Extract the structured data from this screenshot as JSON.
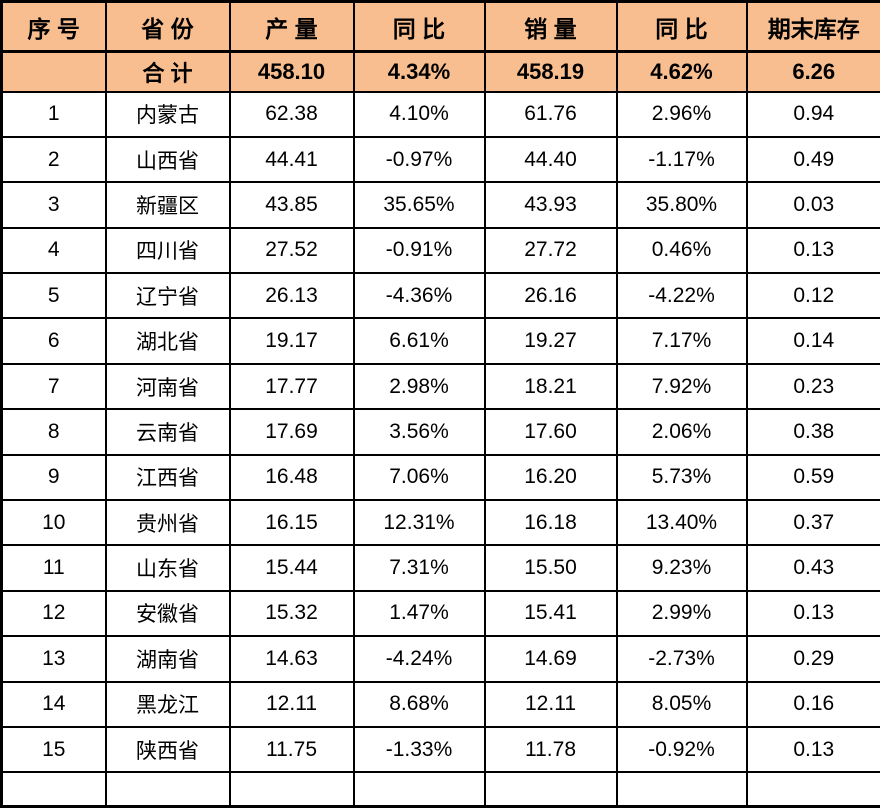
{
  "colors": {
    "header_bg": "#F9BE8F",
    "border": "#000000",
    "text": "#000000",
    "row_bg": "#FFFFFF"
  },
  "table": {
    "columns": [
      {
        "key": "index",
        "label": "序 号"
      },
      {
        "key": "province",
        "label": "省 份"
      },
      {
        "key": "production",
        "label": "产 量"
      },
      {
        "key": "production_yoy",
        "label": "同 比"
      },
      {
        "key": "sales",
        "label": "销 量"
      },
      {
        "key": "sales_yoy",
        "label": "同 比"
      },
      {
        "key": "ending_inventory",
        "label": "期末库存"
      }
    ],
    "total_row": {
      "index": "",
      "province": "合 计",
      "production": "458.10",
      "production_yoy": "4.34%",
      "sales": "458.19",
      "sales_yoy": "4.62%",
      "ending_inventory": "6.26"
    },
    "rows": [
      {
        "index": "1",
        "province": "内蒙古",
        "production": "62.38",
        "production_yoy": "4.10%",
        "sales": "61.76",
        "sales_yoy": "2.96%",
        "ending_inventory": "0.94"
      },
      {
        "index": "2",
        "province": "山西省",
        "production": "44.41",
        "production_yoy": "-0.97%",
        "sales": "44.40",
        "sales_yoy": "-1.17%",
        "ending_inventory": "0.49"
      },
      {
        "index": "3",
        "province": "新疆区",
        "production": "43.85",
        "production_yoy": "35.65%",
        "sales": "43.93",
        "sales_yoy": "35.80%",
        "ending_inventory": "0.03"
      },
      {
        "index": "4",
        "province": "四川省",
        "production": "27.52",
        "production_yoy": "-0.91%",
        "sales": "27.72",
        "sales_yoy": "0.46%",
        "ending_inventory": "0.13"
      },
      {
        "index": "5",
        "province": "辽宁省",
        "production": "26.13",
        "production_yoy": "-4.36%",
        "sales": "26.16",
        "sales_yoy": "-4.22%",
        "ending_inventory": "0.12"
      },
      {
        "index": "6",
        "province": "湖北省",
        "production": "19.17",
        "production_yoy": "6.61%",
        "sales": "19.27",
        "sales_yoy": "7.17%",
        "ending_inventory": "0.14"
      },
      {
        "index": "7",
        "province": "河南省",
        "production": "17.77",
        "production_yoy": "2.98%",
        "sales": "18.21",
        "sales_yoy": "7.92%",
        "ending_inventory": "0.23"
      },
      {
        "index": "8",
        "province": "云南省",
        "production": "17.69",
        "production_yoy": "3.56%",
        "sales": "17.60",
        "sales_yoy": "2.06%",
        "ending_inventory": "0.38"
      },
      {
        "index": "9",
        "province": "江西省",
        "production": "16.48",
        "production_yoy": "7.06%",
        "sales": "16.20",
        "sales_yoy": "5.73%",
        "ending_inventory": "0.59"
      },
      {
        "index": "10",
        "province": "贵州省",
        "production": "16.15",
        "production_yoy": "12.31%",
        "sales": "16.18",
        "sales_yoy": "13.40%",
        "ending_inventory": "0.37"
      },
      {
        "index": "11",
        "province": "山东省",
        "production": "15.44",
        "production_yoy": "7.31%",
        "sales": "15.50",
        "sales_yoy": "9.23%",
        "ending_inventory": "0.43"
      },
      {
        "index": "12",
        "province": "安徽省",
        "production": "15.32",
        "production_yoy": "1.47%",
        "sales": "15.41",
        "sales_yoy": "2.99%",
        "ending_inventory": "0.13"
      },
      {
        "index": "13",
        "province": "湖南省",
        "production": "14.63",
        "production_yoy": "-4.24%",
        "sales": "14.69",
        "sales_yoy": "-2.73%",
        "ending_inventory": "0.29"
      },
      {
        "index": "14",
        "province": "黑龙江",
        "production": "12.11",
        "production_yoy": "8.68%",
        "sales": "12.11",
        "sales_yoy": "8.05%",
        "ending_inventory": "0.16"
      },
      {
        "index": "15",
        "province": "陕西省",
        "production": "11.75",
        "production_yoy": "-1.33%",
        "sales": "11.78",
        "sales_yoy": "-0.92%",
        "ending_inventory": "0.13"
      }
    ]
  }
}
